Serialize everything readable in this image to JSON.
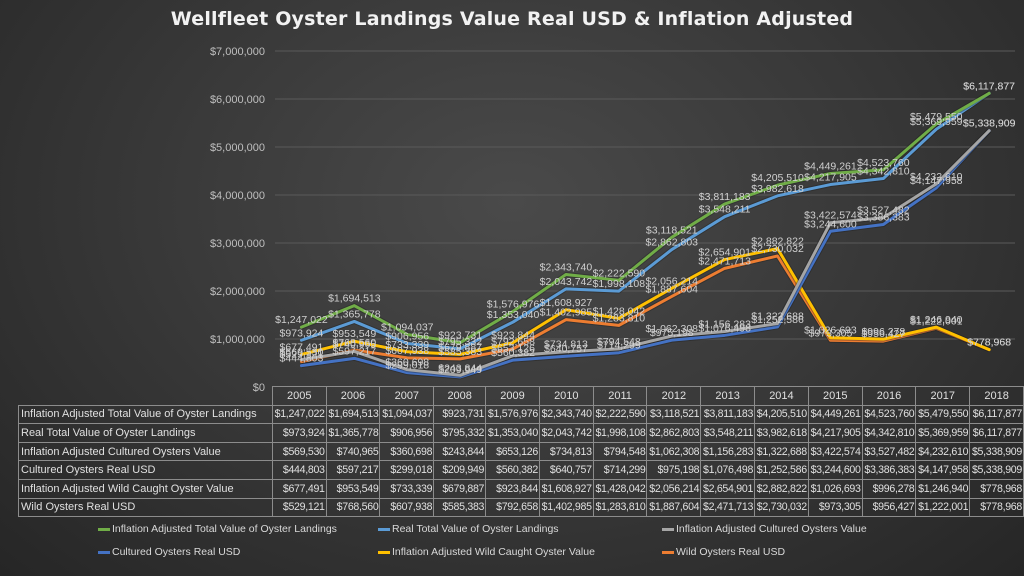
{
  "chart_data": {
    "type": "line",
    "title": "Wellfleet Oyster Landings Value Real USD & Inflation Adjusted",
    "xlabel": "",
    "ylabel": "",
    "ylim": [
      0,
      7000000
    ],
    "yticks": [
      0,
      1000000,
      2000000,
      3000000,
      4000000,
      5000000,
      6000000,
      7000000
    ],
    "ytick_labels": [
      "$0",
      "$1,000,000",
      "$2,000,000",
      "$3,000,000",
      "$4,000,000",
      "$5,000,000",
      "$6,000,000",
      "$7,000,000"
    ],
    "grid": true,
    "legend_position": "bottom",
    "data_table": true,
    "categories": [
      "2005",
      "2006",
      "2007",
      "2008",
      "2009",
      "2010",
      "2011",
      "2012",
      "2013",
      "2014",
      "2015",
      "2016",
      "2017",
      "2018"
    ],
    "series": [
      {
        "name": "Inflation Adjusted Total Value of Oyster Landings",
        "color": "#70ad47",
        "values": [
          1247022,
          1694513,
          1094037,
          923731,
          1576976,
          2343740,
          2222590,
          3118521,
          3811183,
          4205510,
          4449261,
          4523760,
          5479550,
          6117877
        ],
        "table_cells": [
          "$1,247,022",
          "$1,694,513",
          "$1,094,037",
          "$923,731",
          "$1,576,976",
          "$2,343,740",
          "$2,222,590",
          "$3,118,521",
          "$3,811,183",
          "$4,205,510",
          "$4,449,261",
          "$4,523,760",
          "$5,479,550",
          "$6,117,877"
        ]
      },
      {
        "name": "Real Total Value of Oyster Landings",
        "color": "#5b9bd5",
        "values": [
          973924,
          1365778,
          906956,
          795332,
          1353040,
          2043742,
          1998108,
          2862803,
          3548211,
          3982618,
          4217905,
          4342810,
          5369959,
          6117877
        ],
        "table_cells": [
          "$973,924",
          "$1,365,778",
          "$906,956",
          "$795,332",
          "$1,353,040",
          "$2,043,742",
          "$1,998,108",
          "$2,862,803",
          "$3,548,211",
          "$3,982,618",
          "$4,217,905",
          "$4,342,810",
          "$5,369,959",
          "$6,117,877"
        ]
      },
      {
        "name": "Inflation Adjusted Cultured Oysters Value",
        "color": "#a5a5a5",
        "values": [
          569530,
          740965,
          360698,
          243844,
          653126,
          734813,
          794548,
          1062308,
          1156283,
          1322688,
          3422574,
          3527482,
          4232610,
          5338909
        ],
        "table_cells": [
          "$569,530",
          "$740,965",
          "$360,698",
          "$243,844",
          "$653,126",
          "$734,813",
          "$794,548",
          "$1,062,308",
          "$1,156,283",
          "$1,322,688",
          "$3,422,574",
          "$3,527,482",
          "$4,232,610",
          "$5,338,909"
        ]
      },
      {
        "name": "Cultured Oysters Real USD",
        "color": "#4472c4",
        "values": [
          444803,
          597217,
          299018,
          209949,
          560382,
          640757,
          714299,
          975198,
          1076498,
          1252586,
          3244600,
          3386383,
          4147958,
          5338909
        ],
        "table_cells": [
          "$444,803",
          "$597,217",
          "$299,018",
          "$209,949",
          "$560,382",
          "$640,757",
          "$714,299",
          "$975,198",
          "$1,076,498",
          "$1,252,586",
          "$3,244,600",
          "$3,386,383",
          "$4,147,958",
          "$5,338,909"
        ]
      },
      {
        "name": "Inflation Adjusted Wild Caught Oyster Value",
        "color": "#ffc000",
        "values": [
          677491,
          953549,
          733339,
          679887,
          923844,
          1608927,
          1428042,
          2056214,
          2654901,
          2882822,
          1026693,
          996278,
          1246940,
          778968
        ],
        "table_cells": [
          "$677,491",
          "$953,549",
          "$733,339",
          "$679,887",
          "$923,844",
          "$1,608,927",
          "$1,428,042",
          "$2,056,214",
          "$2,654,901",
          "$2,882,822",
          "$1,026,693",
          "$996,278",
          "$1,246,940",
          "$778,968"
        ]
      },
      {
        "name": "Wild Oysters Real USD",
        "color": "#ed7d31",
        "values": [
          529121,
          768560,
          607938,
          585383,
          792658,
          1402985,
          1283810,
          1887604,
          2471713,
          2730032,
          973305,
          956427,
          1222001,
          778968
        ],
        "table_cells": [
          "$529,121",
          "$768,560",
          "$607,938",
          "$585,383",
          "$792,658",
          "$1,402,985",
          "$1,283,810",
          "$1,887,604",
          "$2,471,713",
          "$2,730,032",
          "$973,305",
          "$956,427",
          "$1,222,001",
          "$778,968"
        ]
      }
    ]
  }
}
